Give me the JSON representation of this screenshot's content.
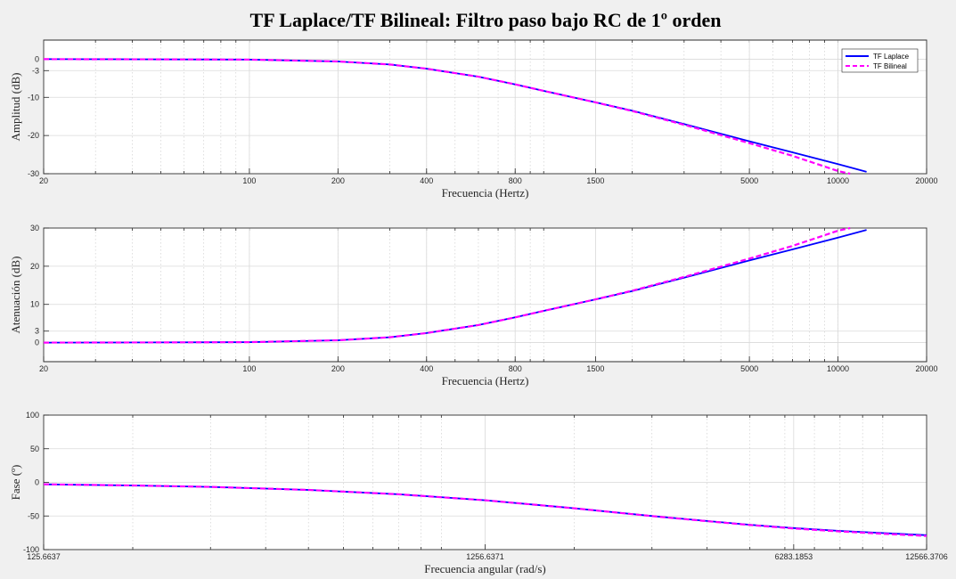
{
  "figure": {
    "title": "TF Laplace/TF Bilineal: Filtro paso bajo RC de 1º orden",
    "background": "#f0f0f0"
  },
  "legend": {
    "entries": [
      {
        "label": "TF Laplace",
        "color": "#0000ff",
        "style": "solid"
      },
      {
        "label": "TF Bilineal",
        "color": "#ff00ff",
        "style": "dashed"
      }
    ],
    "placement": "top-right"
  },
  "chart_data": [
    {
      "type": "line",
      "name": "amplitude",
      "xscale": "log",
      "xlabel": "Frecuencia (Hertz)",
      "ylabel": "Amplitud (dB)",
      "xlim": [
        20,
        20000
      ],
      "ylim": [
        -30,
        5
      ],
      "xticks": [
        20,
        100,
        200,
        400,
        800,
        1500,
        5000,
        10000,
        20000
      ],
      "xtick_labels": [
        "20",
        "100",
        "200",
        "400",
        "800",
        "1500",
        "5000",
        "10000",
        "20000"
      ],
      "yticks": [
        -30,
        -20,
        -10,
        -3,
        0
      ],
      "ytick_labels": [
        "-30",
        "-20",
        "-10",
        "-3",
        "0"
      ],
      "grid": true,
      "series": [
        {
          "name": "TF Laplace",
          "color": "#0000ff",
          "style": "solid",
          "x": [
            20,
            50,
            100,
            200,
            300,
            400,
            600,
            800,
            1000,
            1500,
            2000,
            3000,
            5000,
            7000,
            10000,
            12500
          ],
          "y": [
            0,
            -0.03,
            -0.1,
            -0.6,
            -1.4,
            -2.5,
            -4.6,
            -6.6,
            -8.3,
            -11.3,
            -13.5,
            -17.0,
            -21.5,
            -24.4,
            -27.5,
            -29.5
          ]
        },
        {
          "name": "TF Bilineal",
          "color": "#ff00ff",
          "style": "dashed",
          "x": [
            20,
            50,
            100,
            200,
            300,
            400,
            600,
            800,
            1000,
            1500,
            2000,
            3000,
            5000,
            7000,
            10000,
            11000
          ],
          "y": [
            0,
            -0.03,
            -0.1,
            -0.6,
            -1.4,
            -2.5,
            -4.6,
            -6.6,
            -8.3,
            -11.3,
            -13.6,
            -17.2,
            -22.0,
            -25.3,
            -29.3,
            -30
          ]
        }
      ]
    },
    {
      "type": "line",
      "name": "attenuation",
      "xscale": "log",
      "xlabel": "Frecuencia (Hertz)",
      "ylabel": "Atenuación (dB)",
      "xlim": [
        20,
        20000
      ],
      "ylim": [
        -5,
        30
      ],
      "xticks": [
        20,
        100,
        200,
        400,
        800,
        1500,
        5000,
        10000,
        20000
      ],
      "xtick_labels": [
        "20",
        "100",
        "200",
        "400",
        "800",
        "1500",
        "5000",
        "10000",
        "20000"
      ],
      "yticks": [
        0,
        3,
        10,
        20,
        30
      ],
      "ytick_labels": [
        "0",
        "3",
        "10",
        "20",
        "30"
      ],
      "grid": true,
      "series": [
        {
          "name": "TF Laplace",
          "color": "#0000ff",
          "style": "solid",
          "x": [
            20,
            50,
            100,
            200,
            300,
            400,
            600,
            800,
            1000,
            1500,
            2000,
            3000,
            5000,
            7000,
            10000,
            12500
          ],
          "y": [
            0,
            0.03,
            0.1,
            0.6,
            1.4,
            2.5,
            4.6,
            6.6,
            8.3,
            11.3,
            13.5,
            17.0,
            21.5,
            24.4,
            27.5,
            29.5
          ]
        },
        {
          "name": "TF Bilineal",
          "color": "#ff00ff",
          "style": "dashed",
          "x": [
            20,
            50,
            100,
            200,
            300,
            400,
            600,
            800,
            1000,
            1500,
            2000,
            3000,
            5000,
            7000,
            10000,
            11000
          ],
          "y": [
            0,
            0.03,
            0.1,
            0.6,
            1.4,
            2.5,
            4.6,
            6.6,
            8.3,
            11.3,
            13.6,
            17.2,
            22.0,
            25.3,
            29.3,
            30
          ]
        }
      ]
    },
    {
      "type": "line",
      "name": "phase",
      "xscale": "log",
      "xlabel": "Frecuencia angular (rad/s)",
      "ylabel": "Fase (º)",
      "xlim": [
        125.6637,
        12566.3706
      ],
      "ylim": [
        -100,
        100
      ],
      "xticks": [
        125.6637,
        1256.6371,
        6283.1853,
        12566.3706
      ],
      "xtick_labels": [
        "125.6637",
        "1256.6371",
        "6283.1853",
        "12566.3706"
      ],
      "yticks": [
        -100,
        -50,
        0,
        50,
        100
      ],
      "ytick_labels": [
        "-100",
        "-50",
        "0",
        "50",
        "100"
      ],
      "grid": true,
      "series": [
        {
          "name": "TF Laplace",
          "color": "#0000ff",
          "style": "solid",
          "x": [
            125.6637,
            200,
            300,
            500,
            800,
            1256.6371,
            2000,
            3000,
            4000,
            5000,
            6283.1853,
            8000,
            10000,
            12566.3706
          ],
          "y": [
            -2.9,
            -4.6,
            -6.8,
            -11.3,
            -17.7,
            -26.6,
            -38.5,
            -50.0,
            -57.5,
            -63.0,
            -68.0,
            -72.2,
            -75.4,
            -78.5
          ]
        },
        {
          "name": "TF Bilineal",
          "color": "#ff00ff",
          "style": "dashed",
          "x": [
            125.6637,
            200,
            300,
            500,
            800,
            1256.6371,
            2000,
            3000,
            4000,
            5000,
            6283.1853,
            8000,
            10000,
            12566.3706
          ],
          "y": [
            -2.9,
            -4.6,
            -6.8,
            -11.3,
            -17.7,
            -26.6,
            -38.6,
            -50.2,
            -57.8,
            -63.4,
            -68.6,
            -73.0,
            -76.4,
            -79.8
          ]
        }
      ]
    }
  ]
}
